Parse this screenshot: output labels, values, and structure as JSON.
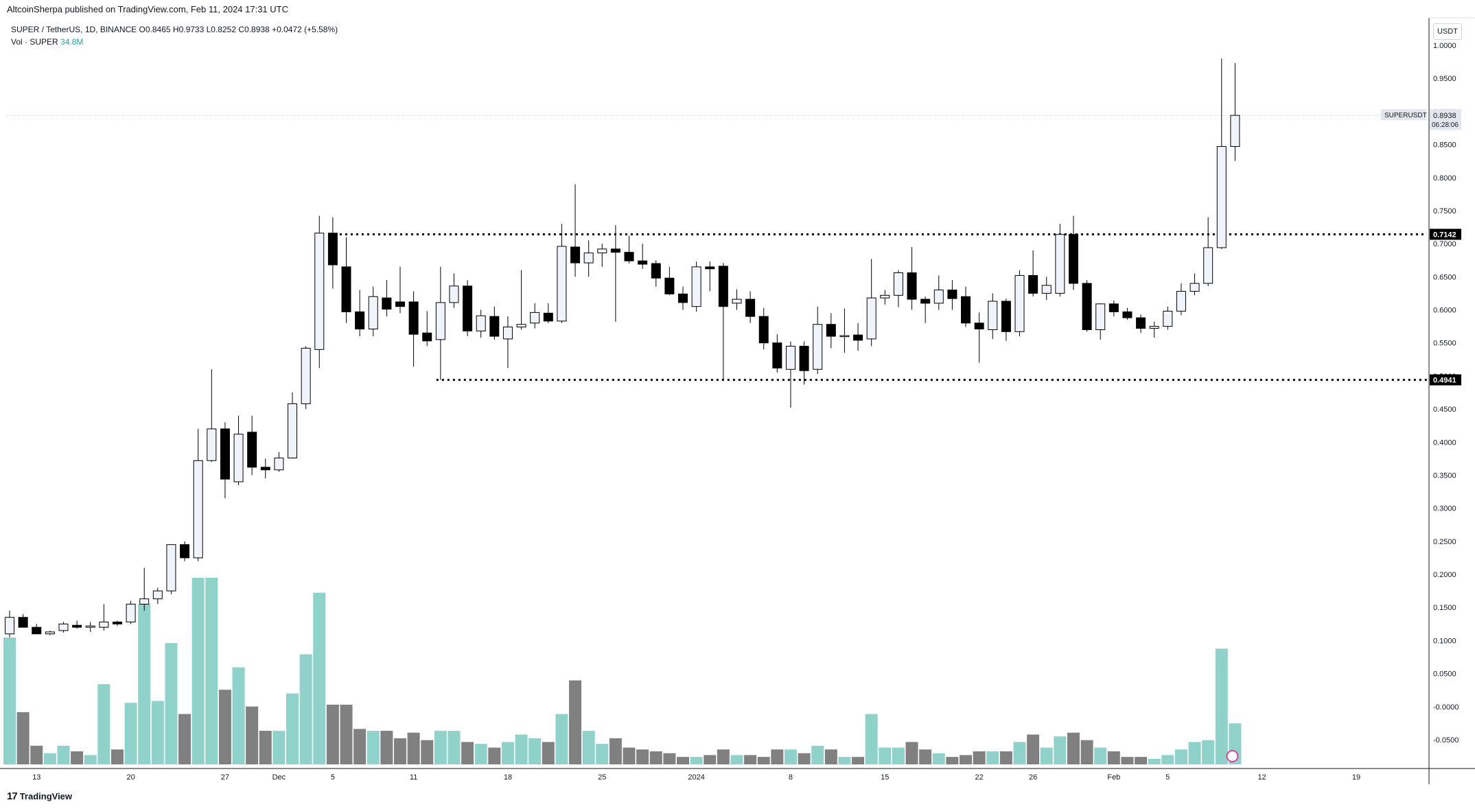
{
  "header": {
    "publisher": "AltcoinSherpa published on TradingView.com, Feb 11, 2024 17:31 UTC"
  },
  "legend": {
    "pair": "SUPER / TetherUS, 1D, BINANCE",
    "open": "O0.8465",
    "high": "H0.9733",
    "low": "L0.8252",
    "close": "C0.8938",
    "change": "+0.0472 (+5.58%)",
    "vol_label": "Vol · SUPER",
    "vol_value": "34.8M"
  },
  "price_axis": {
    "currency_button": "USDT",
    "ticks": [
      "1.0000",
      "0.9500",
      "0.9000",
      "0.8500",
      "0.8000",
      "0.7500",
      "0.7000",
      "0.6500",
      "0.6000",
      "0.5500",
      "0.5000",
      "0.4500",
      "0.4000",
      "0.3500",
      "0.3000",
      "0.2500",
      "0.2000",
      "0.1500",
      "0.1000",
      "0.0500",
      "-0.0000",
      "-0.0500"
    ],
    "symbol_label": "SUPERUSDT",
    "last_price": "0.8938",
    "countdown": "06:28:06",
    "resistance_label": "0.7142",
    "support_label": "0.4941"
  },
  "time_axis": {
    "labels": [
      {
        "text": "13",
        "i": 2
      },
      {
        "text": "20",
        "i": 9
      },
      {
        "text": "27",
        "i": 16
      },
      {
        "text": "Dec",
        "i": 20
      },
      {
        "text": "5",
        "i": 24
      },
      {
        "text": "11",
        "i": 30
      },
      {
        "text": "18",
        "i": 37
      },
      {
        "text": "25",
        "i": 44
      },
      {
        "text": "2024",
        "i": 51
      },
      {
        "text": "8",
        "i": 58
      },
      {
        "text": "15",
        "i": 65
      },
      {
        "text": "22",
        "i": 72
      },
      {
        "text": "26",
        "i": 76
      },
      {
        "text": "Feb",
        "i": 82
      },
      {
        "text": "5",
        "i": 86
      },
      {
        "text": "12",
        "i": 93
      },
      {
        "text": "19",
        "i": 100
      }
    ]
  },
  "footer": {
    "brand": "TradingView"
  },
  "colors": {
    "bull_body": "#f0f3fa",
    "bear_body": "#000000",
    "wick": "#000000",
    "vol_up": "#8fd2c9",
    "vol_down": "#808080",
    "level_line": "#000000"
  },
  "chart_data": {
    "type": "candlestick",
    "symbol": "SUPER / TetherUS",
    "interval": "1D",
    "x_range": {
      "start": "Nov 11, 2023",
      "end": "Feb 11, 2024"
    },
    "ylim": [
      -0.07,
      1.03
    ],
    "levels": [
      {
        "price": 0.7142,
        "style": "dotted",
        "start_i": 24
      },
      {
        "price": 0.4941,
        "style": "dotted",
        "start_i": 32
      }
    ],
    "candles": [
      {
        "o": 0.11,
        "h": 0.145,
        "l": 0.105,
        "c": 0.135,
        "v": 0.68
      },
      {
        "o": 0.135,
        "h": 0.14,
        "l": 0.12,
        "c": 0.12,
        "v": 0.28
      },
      {
        "o": 0.12,
        "h": 0.125,
        "l": 0.11,
        "c": 0.11,
        "v": 0.1
      },
      {
        "o": 0.11,
        "h": 0.115,
        "l": 0.108,
        "c": 0.113,
        "v": 0.06
      },
      {
        "o": 0.115,
        "h": 0.128,
        "l": 0.112,
        "c": 0.125,
        "v": 0.1
      },
      {
        "o": 0.123,
        "h": 0.13,
        "l": 0.118,
        "c": 0.12,
        "v": 0.07
      },
      {
        "o": 0.12,
        "h": 0.128,
        "l": 0.113,
        "c": 0.122,
        "v": 0.05
      },
      {
        "o": 0.12,
        "h": 0.155,
        "l": 0.115,
        "c": 0.128,
        "v": 0.43
      },
      {
        "o": 0.128,
        "h": 0.13,
        "l": 0.122,
        "c": 0.125,
        "v": 0.08
      },
      {
        "o": 0.128,
        "h": 0.16,
        "l": 0.125,
        "c": 0.155,
        "v": 0.33
      },
      {
        "o": 0.155,
        "h": 0.21,
        "l": 0.145,
        "c": 0.163,
        "v": 0.86
      },
      {
        "o": 0.163,
        "h": 0.18,
        "l": 0.155,
        "c": 0.175,
        "v": 0.34
      },
      {
        "o": 0.175,
        "h": 0.245,
        "l": 0.17,
        "c": 0.245,
        "v": 0.65
      },
      {
        "o": 0.245,
        "h": 0.25,
        "l": 0.22,
        "c": 0.225,
        "v": 0.27
      },
      {
        "o": 0.225,
        "h": 0.42,
        "l": 0.22,
        "c": 0.372,
        "v": 1.0
      },
      {
        "o": 0.372,
        "h": 0.51,
        "l": 0.37,
        "c": 0.42,
        "v": 1.0
      },
      {
        "o": 0.42,
        "h": 0.43,
        "l": 0.315,
        "c": 0.344,
        "v": 0.4
      },
      {
        "o": 0.34,
        "h": 0.44,
        "l": 0.335,
        "c": 0.412,
        "v": 0.52
      },
      {
        "o": 0.415,
        "h": 0.44,
        "l": 0.35,
        "c": 0.362,
        "v": 0.31
      },
      {
        "o": 0.362,
        "h": 0.375,
        "l": 0.345,
        "c": 0.358,
        "v": 0.18
      },
      {
        "o": 0.358,
        "h": 0.385,
        "l": 0.355,
        "c": 0.376,
        "v": 0.18
      },
      {
        "o": 0.376,
        "h": 0.475,
        "l": 0.375,
        "c": 0.458,
        "v": 0.38
      },
      {
        "o": 0.458,
        "h": 0.545,
        "l": 0.45,
        "c": 0.542,
        "v": 0.59
      },
      {
        "o": 0.54,
        "h": 0.742,
        "l": 0.512,
        "c": 0.716,
        "v": 0.92
      },
      {
        "o": 0.716,
        "h": 0.74,
        "l": 0.632,
        "c": 0.668,
        "v": 0.32
      },
      {
        "o": 0.665,
        "h": 0.71,
        "l": 0.58,
        "c": 0.597,
        "v": 0.32
      },
      {
        "o": 0.597,
        "h": 0.63,
        "l": 0.56,
        "c": 0.571,
        "v": 0.19
      },
      {
        "o": 0.571,
        "h": 0.635,
        "l": 0.56,
        "c": 0.62,
        "v": 0.18
      },
      {
        "o": 0.618,
        "h": 0.645,
        "l": 0.59,
        "c": 0.601,
        "v": 0.18
      },
      {
        "o": 0.612,
        "h": 0.665,
        "l": 0.595,
        "c": 0.605,
        "v": 0.14
      },
      {
        "o": 0.612,
        "h": 0.628,
        "l": 0.514,
        "c": 0.563,
        "v": 0.17
      },
      {
        "o": 0.565,
        "h": 0.598,
        "l": 0.545,
        "c": 0.553,
        "v": 0.13
      },
      {
        "o": 0.555,
        "h": 0.665,
        "l": 0.494,
        "c": 0.611,
        "v": 0.18
      },
      {
        "o": 0.611,
        "h": 0.655,
        "l": 0.603,
        "c": 0.636,
        "v": 0.18
      },
      {
        "o": 0.636,
        "h": 0.645,
        "l": 0.56,
        "c": 0.568,
        "v": 0.12
      },
      {
        "o": 0.568,
        "h": 0.6,
        "l": 0.558,
        "c": 0.591,
        "v": 0.11
      },
      {
        "o": 0.59,
        "h": 0.605,
        "l": 0.555,
        "c": 0.56,
        "v": 0.09
      },
      {
        "o": 0.556,
        "h": 0.59,
        "l": 0.512,
        "c": 0.574,
        "v": 0.12
      },
      {
        "o": 0.574,
        "h": 0.66,
        "l": 0.57,
        "c": 0.578,
        "v": 0.16
      },
      {
        "o": 0.58,
        "h": 0.61,
        "l": 0.572,
        "c": 0.596,
        "v": 0.14
      },
      {
        "o": 0.595,
        "h": 0.61,
        "l": 0.58,
        "c": 0.583,
        "v": 0.12
      },
      {
        "o": 0.583,
        "h": 0.73,
        "l": 0.58,
        "c": 0.696,
        "v": 0.27
      },
      {
        "o": 0.695,
        "h": 0.79,
        "l": 0.65,
        "c": 0.671,
        "v": 0.45
      },
      {
        "o": 0.671,
        "h": 0.705,
        "l": 0.65,
        "c": 0.686,
        "v": 0.18
      },
      {
        "o": 0.686,
        "h": 0.7,
        "l": 0.665,
        "c": 0.692,
        "v": 0.11
      },
      {
        "o": 0.692,
        "h": 0.728,
        "l": 0.582,
        "c": 0.687,
        "v": 0.14
      },
      {
        "o": 0.687,
        "h": 0.712,
        "l": 0.67,
        "c": 0.674,
        "v": 0.09
      },
      {
        "o": 0.674,
        "h": 0.7,
        "l": 0.662,
        "c": 0.669,
        "v": 0.08
      },
      {
        "o": 0.67,
        "h": 0.675,
        "l": 0.635,
        "c": 0.648,
        "v": 0.07
      },
      {
        "o": 0.648,
        "h": 0.665,
        "l": 0.622,
        "c": 0.624,
        "v": 0.06
      },
      {
        "o": 0.624,
        "h": 0.635,
        "l": 0.6,
        "c": 0.611,
        "v": 0.04
      },
      {
        "o": 0.605,
        "h": 0.673,
        "l": 0.597,
        "c": 0.665,
        "v": 0.04
      },
      {
        "o": 0.665,
        "h": 0.673,
        "l": 0.628,
        "c": 0.662,
        "v": 0.05
      },
      {
        "o": 0.666,
        "h": 0.671,
        "l": 0.494,
        "c": 0.605,
        "v": 0.08
      },
      {
        "o": 0.61,
        "h": 0.631,
        "l": 0.6,
        "c": 0.616,
        "v": 0.05
      },
      {
        "o": 0.616,
        "h": 0.628,
        "l": 0.58,
        "c": 0.59,
        "v": 0.05
      },
      {
        "o": 0.59,
        "h": 0.603,
        "l": 0.54,
        "c": 0.55,
        "v": 0.04
      },
      {
        "o": 0.55,
        "h": 0.563,
        "l": 0.505,
        "c": 0.512,
        "v": 0.08
      },
      {
        "o": 0.51,
        "h": 0.552,
        "l": 0.452,
        "c": 0.545,
        "v": 0.08
      },
      {
        "o": 0.545,
        "h": 0.552,
        "l": 0.487,
        "c": 0.508,
        "v": 0.06
      },
      {
        "o": 0.51,
        "h": 0.605,
        "l": 0.503,
        "c": 0.578,
        "v": 0.1
      },
      {
        "o": 0.578,
        "h": 0.595,
        "l": 0.542,
        "c": 0.56,
        "v": 0.08
      },
      {
        "o": 0.56,
        "h": 0.602,
        "l": 0.535,
        "c": 0.561,
        "v": 0.04
      },
      {
        "o": 0.562,
        "h": 0.58,
        "l": 0.538,
        "c": 0.554,
        "v": 0.04
      },
      {
        "o": 0.556,
        "h": 0.677,
        "l": 0.545,
        "c": 0.618,
        "v": 0.27
      },
      {
        "o": 0.618,
        "h": 0.63,
        "l": 0.608,
        "c": 0.622,
        "v": 0.09
      },
      {
        "o": 0.622,
        "h": 0.66,
        "l": 0.604,
        "c": 0.656,
        "v": 0.09
      },
      {
        "o": 0.656,
        "h": 0.695,
        "l": 0.6,
        "c": 0.616,
        "v": 0.12
      },
      {
        "o": 0.616,
        "h": 0.62,
        "l": 0.58,
        "c": 0.61,
        "v": 0.08
      },
      {
        "o": 0.61,
        "h": 0.652,
        "l": 0.6,
        "c": 0.63,
        "v": 0.06
      },
      {
        "o": 0.63,
        "h": 0.645,
        "l": 0.6,
        "c": 0.617,
        "v": 0.04
      },
      {
        "o": 0.62,
        "h": 0.635,
        "l": 0.574,
        "c": 0.58,
        "v": 0.05
      },
      {
        "o": 0.58,
        "h": 0.596,
        "l": 0.52,
        "c": 0.571,
        "v": 0.07
      },
      {
        "o": 0.57,
        "h": 0.625,
        "l": 0.556,
        "c": 0.613,
        "v": 0.07
      },
      {
        "o": 0.613,
        "h": 0.617,
        "l": 0.553,
        "c": 0.567,
        "v": 0.07
      },
      {
        "o": 0.567,
        "h": 0.66,
        "l": 0.56,
        "c": 0.652,
        "v": 0.12
      },
      {
        "o": 0.652,
        "h": 0.69,
        "l": 0.62,
        "c": 0.625,
        "v": 0.16
      },
      {
        "o": 0.625,
        "h": 0.65,
        "l": 0.615,
        "c": 0.637,
        "v": 0.09
      },
      {
        "o": 0.625,
        "h": 0.73,
        "l": 0.62,
        "c": 0.714,
        "v": 0.15
      },
      {
        "o": 0.714,
        "h": 0.742,
        "l": 0.63,
        "c": 0.64,
        "v": 0.17
      },
      {
        "o": 0.64,
        "h": 0.645,
        "l": 0.567,
        "c": 0.57,
        "v": 0.13
      },
      {
        "o": 0.57,
        "h": 0.61,
        "l": 0.555,
        "c": 0.609,
        "v": 0.09
      },
      {
        "o": 0.609,
        "h": 0.614,
        "l": 0.59,
        "c": 0.597,
        "v": 0.07
      },
      {
        "o": 0.597,
        "h": 0.603,
        "l": 0.585,
        "c": 0.588,
        "v": 0.04
      },
      {
        "o": 0.588,
        "h": 0.593,
        "l": 0.565,
        "c": 0.572,
        "v": 0.04
      },
      {
        "o": 0.572,
        "h": 0.582,
        "l": 0.558,
        "c": 0.575,
        "v": 0.03
      },
      {
        "o": 0.575,
        "h": 0.605,
        "l": 0.57,
        "c": 0.598,
        "v": 0.05
      },
      {
        "o": 0.598,
        "h": 0.64,
        "l": 0.592,
        "c": 0.628,
        "v": 0.08
      },
      {
        "o": 0.628,
        "h": 0.655,
        "l": 0.622,
        "c": 0.64,
        "v": 0.12
      },
      {
        "o": 0.64,
        "h": 0.74,
        "l": 0.636,
        "c": 0.694,
        "v": 0.13
      },
      {
        "o": 0.694,
        "h": 0.98,
        "l": 0.692,
        "c": 0.847,
        "v": 0.62
      },
      {
        "o": 0.847,
        "h": 0.973,
        "l": 0.825,
        "c": 0.894,
        "v": 0.22
      }
    ]
  }
}
